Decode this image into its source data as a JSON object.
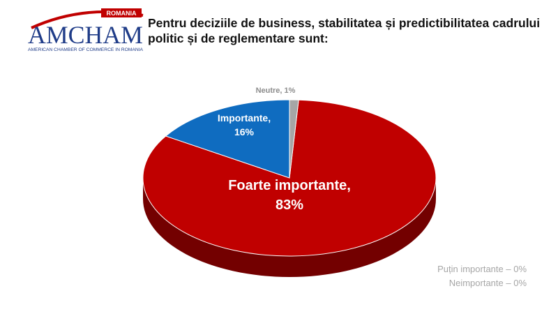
{
  "logo": {
    "name": "AMCHAM",
    "country": "ROMANIA",
    "full_name": "AMERICAN CHAMBER OF COMMERCE IN ROMANIA"
  },
  "chart_data": {
    "type": "pie",
    "title": "Pentru deciziile de business, stabilitatea și predictibilitatea cadrului politic și de reglementare sunt:",
    "values": [
      83,
      16,
      1,
      0,
      0
    ],
    "value_labels": [
      "Foarte importante, 83%",
      "Importante, 16%",
      "Neutre, 1%",
      "Puțin importante – 0%",
      "Neimportante – 0%"
    ],
    "colors": [
      "#c00000",
      "#0f6cc0",
      "#a6a6a6",
      "#7f7f7f",
      "#404040"
    ]
  }
}
